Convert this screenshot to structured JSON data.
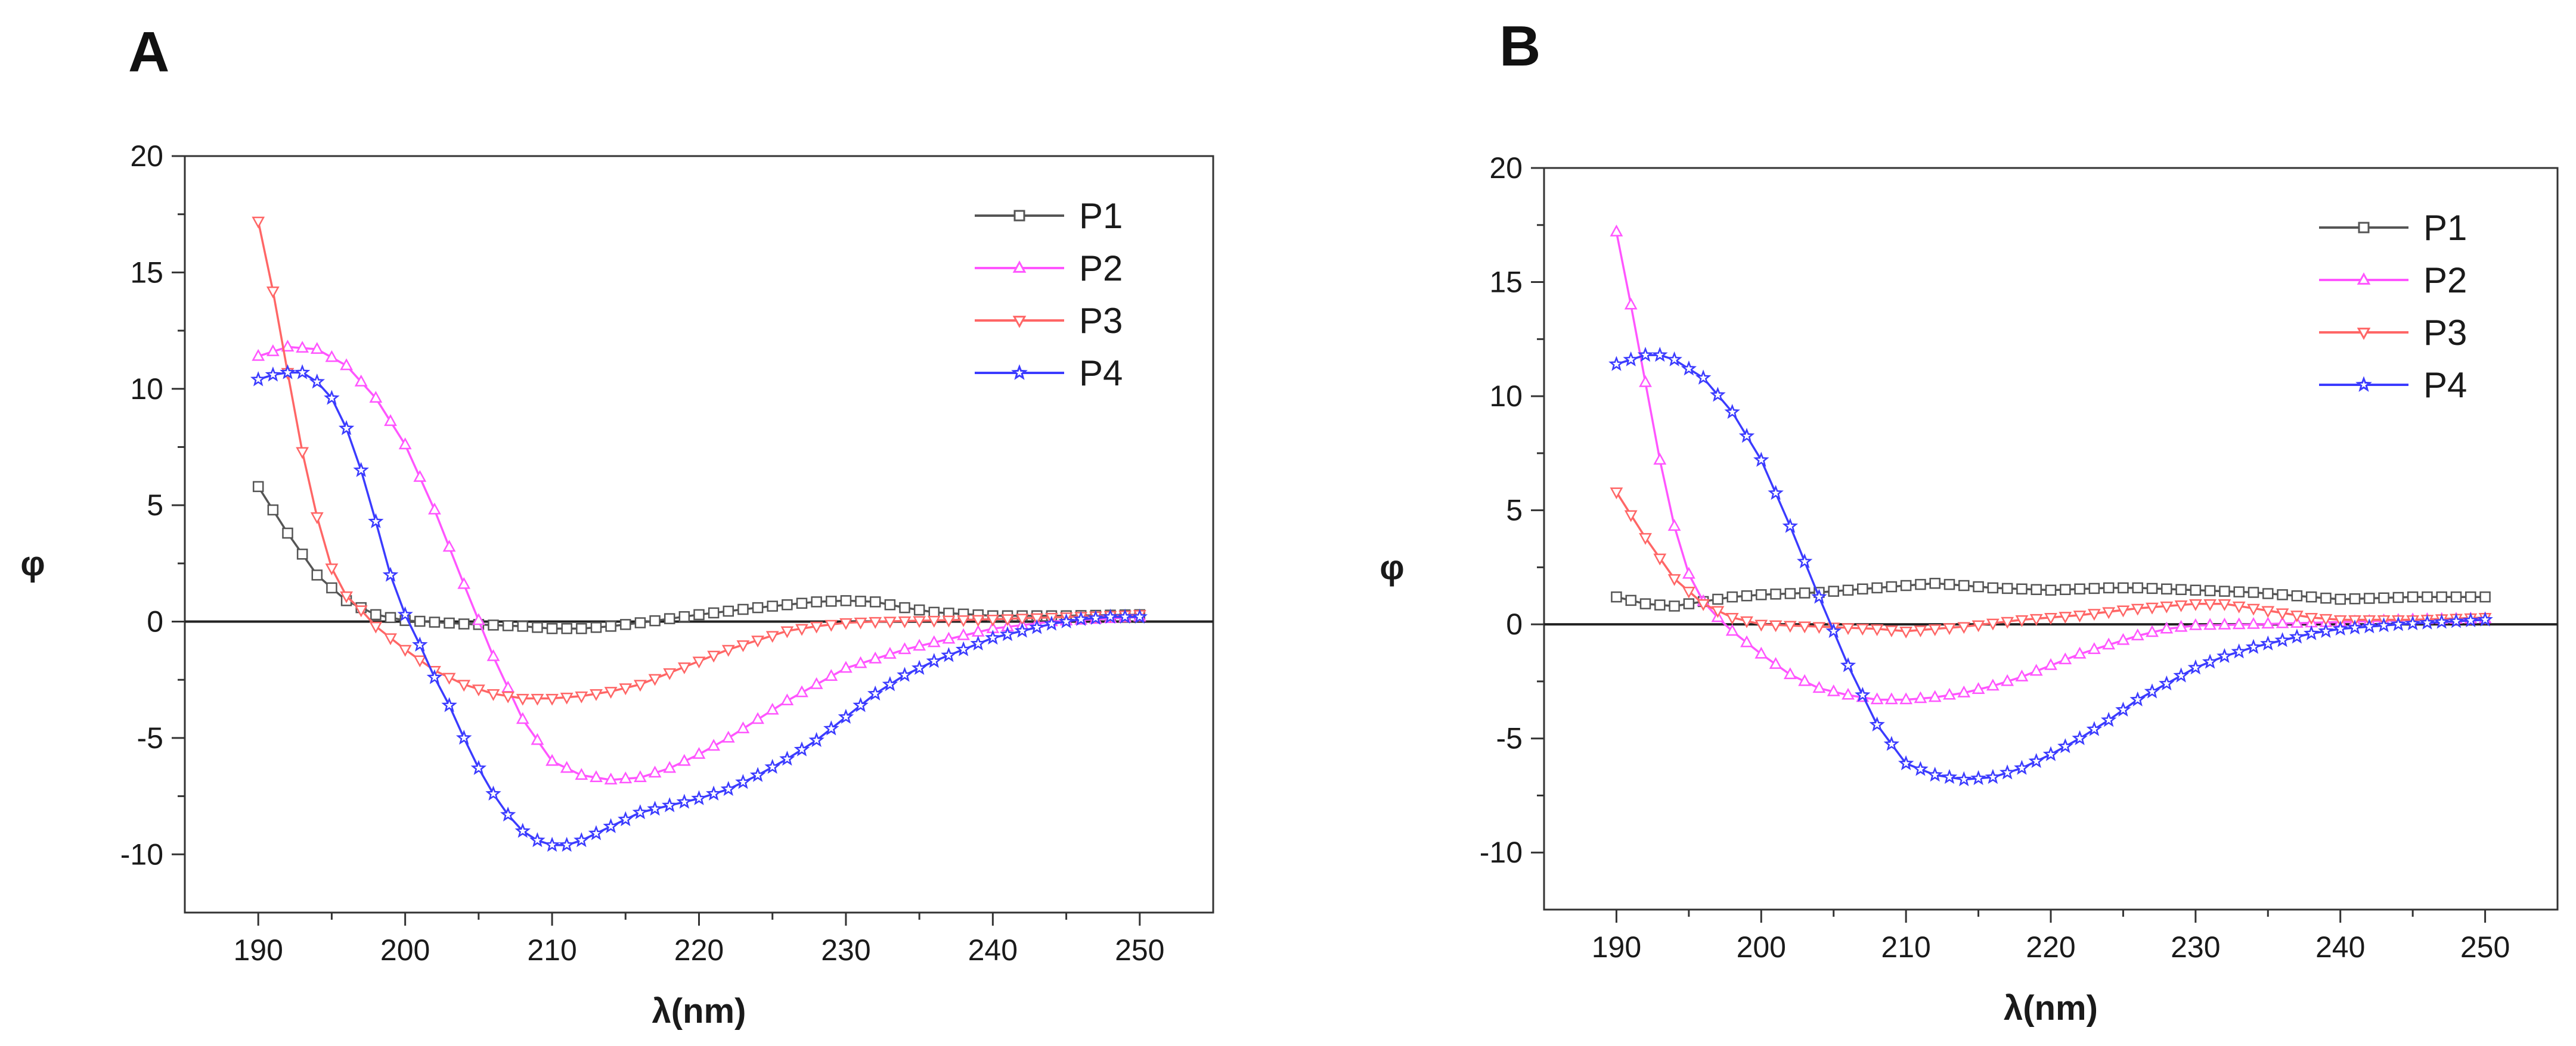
{
  "chart_data": [
    {
      "type": "line",
      "panel_label": "A",
      "xlabel": "λ(nm)",
      "ylabel": "φ",
      "xlim": [
        185,
        255
      ],
      "ylim": [
        -12.5,
        20
      ],
      "xticks": [
        190,
        200,
        210,
        220,
        230,
        240,
        250
      ],
      "yticks": [
        -10,
        -5,
        0,
        5,
        10,
        15,
        20
      ],
      "zero_line": true,
      "legend_position": "top-right",
      "series": [
        {
          "name": "P1",
          "color": "#555555",
          "marker": "square",
          "points": [
            [
              190,
              5.8
            ],
            [
              192,
              3.8
            ],
            [
              194,
              2
            ],
            [
              196,
              0.9
            ],
            [
              198,
              0.3
            ],
            [
              200,
              0.05
            ],
            [
              204,
              -0.1
            ],
            [
              208,
              -0.2
            ],
            [
              210,
              -0.3
            ],
            [
              212,
              -0.3
            ],
            [
              214,
              -0.2
            ],
            [
              216,
              -0.05
            ],
            [
              220,
              0.3
            ],
            [
              224,
              0.6
            ],
            [
              228,
              0.85
            ],
            [
              230,
              0.9
            ],
            [
              232,
              0.85
            ],
            [
              234,
              0.6
            ],
            [
              236,
              0.4
            ],
            [
              240,
              0.25
            ],
            [
              245,
              0.25
            ],
            [
              250,
              0.3
            ]
          ]
        },
        {
          "name": "P2",
          "color": "#ff55ff",
          "marker": "triangle-up",
          "points": [
            [
              190,
              11.4
            ],
            [
              192,
              11.8
            ],
            [
              194,
              11.7
            ],
            [
              196,
              11
            ],
            [
              198,
              9.6
            ],
            [
              200,
              7.6
            ],
            [
              202,
              4.8
            ],
            [
              204,
              1.6
            ],
            [
              206,
              -1.5
            ],
            [
              208,
              -4.2
            ],
            [
              210,
              -6
            ],
            [
              212,
              -6.6
            ],
            [
              214,
              -6.8
            ],
            [
              216,
              -6.7
            ],
            [
              218,
              -6.3
            ],
            [
              220,
              -5.7
            ],
            [
              222,
              -5
            ],
            [
              224,
              -4.2
            ],
            [
              226,
              -3.4
            ],
            [
              228,
              -2.7
            ],
            [
              230,
              -2
            ],
            [
              232,
              -1.6
            ],
            [
              234,
              -1.2
            ],
            [
              236,
              -0.9
            ],
            [
              238,
              -0.6
            ],
            [
              240,
              -0.3
            ],
            [
              244,
              0
            ],
            [
              250,
              0.2
            ]
          ]
        },
        {
          "name": "P3",
          "color": "#ff6666",
          "marker": "triangle-down",
          "points": [
            [
              190,
              17.2
            ],
            [
              191,
              14.2
            ],
            [
              192,
              10.7
            ],
            [
              193,
              7.3
            ],
            [
              194,
              4.5
            ],
            [
              195,
              2.3
            ],
            [
              196,
              1.1
            ],
            [
              197,
              0.5
            ],
            [
              198,
              -0.2
            ],
            [
              200,
              -1.2
            ],
            [
              202,
              -2.1
            ],
            [
              204,
              -2.7
            ],
            [
              206,
              -3.1
            ],
            [
              208,
              -3.3
            ],
            [
              210,
              -3.3
            ],
            [
              212,
              -3.2
            ],
            [
              214,
              -3
            ],
            [
              216,
              -2.7
            ],
            [
              218,
              -2.2
            ],
            [
              220,
              -1.7
            ],
            [
              222,
              -1.2
            ],
            [
              224,
              -0.8
            ],
            [
              226,
              -0.4
            ],
            [
              228,
              -0.2
            ],
            [
              230,
              -0.05
            ],
            [
              232,
              0
            ],
            [
              236,
              0.05
            ],
            [
              240,
              0.1
            ],
            [
              245,
              0.2
            ],
            [
              250,
              0.3
            ]
          ]
        },
        {
          "name": "P4",
          "color": "#3b3bff",
          "marker": "star",
          "points": [
            [
              190,
              10.4
            ],
            [
              191,
              10.6
            ],
            [
              192,
              10.7
            ],
            [
              193,
              10.7
            ],
            [
              194,
              10.3
            ],
            [
              195,
              9.6
            ],
            [
              196,
              8.3
            ],
            [
              197,
              6.5
            ],
            [
              198,
              4.3
            ],
            [
              199,
              2
            ],
            [
              200,
              0.3
            ],
            [
              201,
              -1
            ],
            [
              202,
              -2.4
            ],
            [
              203,
              -3.6
            ],
            [
              204,
              -5
            ],
            [
              205,
              -6.3
            ],
            [
              206,
              -7.4
            ],
            [
              207,
              -8.3
            ],
            [
              208,
              -9
            ],
            [
              209,
              -9.4
            ],
            [
              210,
              -9.6
            ],
            [
              211,
              -9.6
            ],
            [
              212,
              -9.4
            ],
            [
              214,
              -8.8
            ],
            [
              216,
              -8.2
            ],
            [
              218,
              -7.9
            ],
            [
              220,
              -7.6
            ],
            [
              222,
              -7.2
            ],
            [
              224,
              -6.6
            ],
            [
              226,
              -5.9
            ],
            [
              228,
              -5.1
            ],
            [
              230,
              -4.1
            ],
            [
              232,
              -3.1
            ],
            [
              234,
              -2.3
            ],
            [
              236,
              -1.7
            ],
            [
              238,
              -1.2
            ],
            [
              240,
              -0.7
            ],
            [
              242,
              -0.4
            ],
            [
              244,
              -0.1
            ],
            [
              246,
              0.1
            ],
            [
              248,
              0.2
            ],
            [
              250,
              0.2
            ]
          ]
        }
      ]
    },
    {
      "type": "line",
      "panel_label": "B",
      "xlabel": "λ(nm)",
      "ylabel": "φ",
      "xlim": [
        185,
        255
      ],
      "ylim": [
        -12.5,
        20
      ],
      "xticks": [
        190,
        200,
        210,
        220,
        230,
        240,
        250
      ],
      "yticks": [
        -10,
        -5,
        0,
        5,
        10,
        15,
        20
      ],
      "zero_line": true,
      "legend_position": "top-right",
      "series": [
        {
          "name": "P1",
          "color": "#555555",
          "marker": "square",
          "points": [
            [
              190,
              1.2
            ],
            [
              192,
              0.9
            ],
            [
              194,
              0.8
            ],
            [
              196,
              1
            ],
            [
              198,
              1.2
            ],
            [
              200,
              1.3
            ],
            [
              204,
              1.4
            ],
            [
              208,
              1.6
            ],
            [
              212,
              1.8
            ],
            [
              214,
              1.7
            ],
            [
              216,
              1.6
            ],
            [
              220,
              1.5
            ],
            [
              224,
              1.6
            ],
            [
              226,
              1.6
            ],
            [
              230,
              1.5
            ],
            [
              234,
              1.4
            ],
            [
              238,
              1.2
            ],
            [
              240,
              1.1
            ],
            [
              245,
              1.2
            ],
            [
              250,
              1.2
            ]
          ]
        },
        {
          "name": "P2",
          "color": "#ff55ff",
          "marker": "triangle-up",
          "points": [
            [
              190,
              17.2
            ],
            [
              191,
              14
            ],
            [
              192,
              10.6
            ],
            [
              193,
              7.2
            ],
            [
              194,
              4.3
            ],
            [
              195,
              2.2
            ],
            [
              196,
              1
            ],
            [
              197,
              0.3
            ],
            [
              198,
              -0.3
            ],
            [
              200,
              -1.3
            ],
            [
              202,
              -2.2
            ],
            [
              204,
              -2.8
            ],
            [
              206,
              -3.1
            ],
            [
              208,
              -3.3
            ],
            [
              210,
              -3.3
            ],
            [
              212,
              -3.2
            ],
            [
              214,
              -3
            ],
            [
              216,
              -2.7
            ],
            [
              218,
              -2.3
            ],
            [
              220,
              -1.8
            ],
            [
              222,
              -1.3
            ],
            [
              224,
              -0.9
            ],
            [
              226,
              -0.5
            ],
            [
              228,
              -0.2
            ],
            [
              230,
              -0.05
            ],
            [
              234,
              0
            ],
            [
              240,
              0.1
            ],
            [
              245,
              0.2
            ],
            [
              250,
              0.25
            ]
          ]
        },
        {
          "name": "P3",
          "color": "#ff6666",
          "marker": "triangle-down",
          "points": [
            [
              190,
              5.8
            ],
            [
              192,
              3.8
            ],
            [
              194,
              2
            ],
            [
              196,
              0.9
            ],
            [
              198,
              0.3
            ],
            [
              200,
              0
            ],
            [
              204,
              -0.1
            ],
            [
              208,
              -0.2
            ],
            [
              210,
              -0.3
            ],
            [
              212,
              -0.2
            ],
            [
              214,
              -0.1
            ],
            [
              218,
              0.2
            ],
            [
              222,
              0.4
            ],
            [
              226,
              0.7
            ],
            [
              230,
              0.9
            ],
            [
              232,
              0.9
            ],
            [
              234,
              0.7
            ],
            [
              236,
              0.5
            ],
            [
              238,
              0.3
            ],
            [
              240,
              0.2
            ],
            [
              245,
              0.2
            ],
            [
              250,
              0.3
            ]
          ]
        },
        {
          "name": "P4",
          "color": "#3b3bff",
          "marker": "star",
          "points": [
            [
              190,
              11.4
            ],
            [
              192,
              11.8
            ],
            [
              193,
              11.8
            ],
            [
              194,
              11.6
            ],
            [
              196,
              10.8
            ],
            [
              198,
              9.3
            ],
            [
              200,
              7.2
            ],
            [
              202,
              4.3
            ],
            [
              204,
              1.2
            ],
            [
              206,
              -1.8
            ],
            [
              208,
              -4.4
            ],
            [
              210,
              -6.1
            ],
            [
              212,
              -6.6
            ],
            [
              214,
              -6.8
            ],
            [
              216,
              -6.7
            ],
            [
              218,
              -6.3
            ],
            [
              220,
              -5.7
            ],
            [
              222,
              -5
            ],
            [
              224,
              -4.2
            ],
            [
              226,
              -3.3
            ],
            [
              228,
              -2.6
            ],
            [
              230,
              -1.9
            ],
            [
              232,
              -1.4
            ],
            [
              234,
              -1
            ],
            [
              236,
              -0.7
            ],
            [
              238,
              -0.4
            ],
            [
              240,
              -0.2
            ],
            [
              244,
              0
            ],
            [
              250,
              0.2
            ]
          ]
        }
      ]
    }
  ]
}
